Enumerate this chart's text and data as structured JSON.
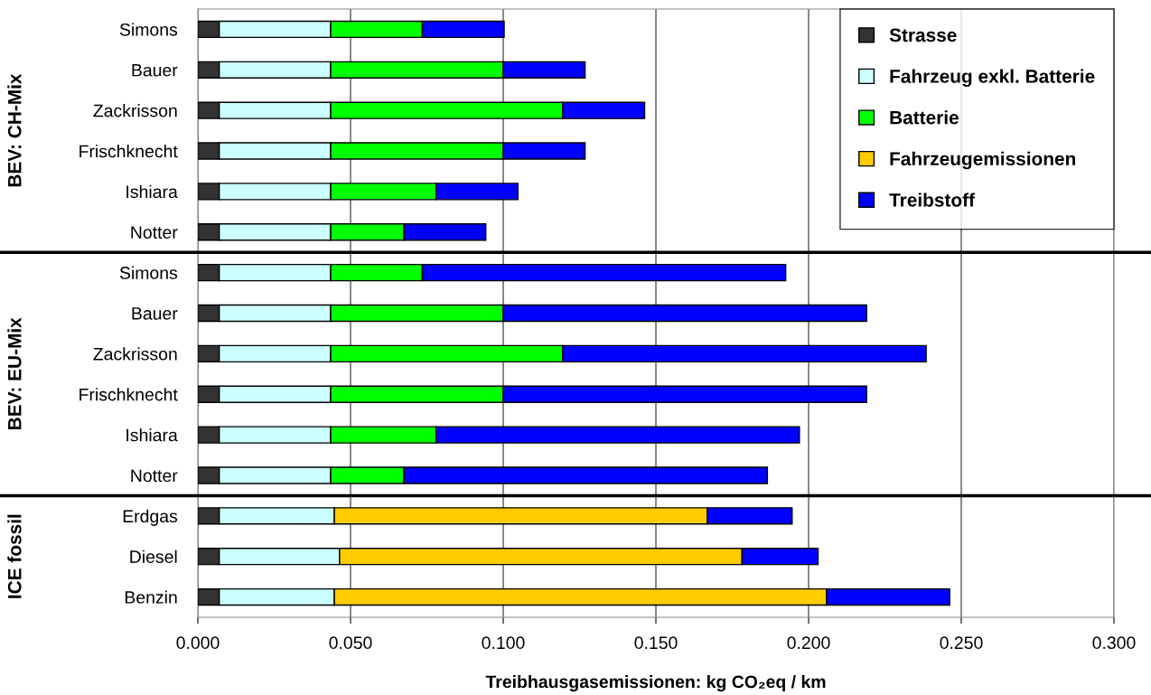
{
  "chart_data": {
    "type": "bar",
    "orientation": "horizontal",
    "stacked": true,
    "categories": [
      "Simons",
      "Bauer",
      "Zackrisson",
      "Frischknecht",
      "Ishiara",
      "Notter",
      "Simons",
      "Bauer",
      "Zackrisson",
      "Frischknecht",
      "Ishiara",
      "Notter",
      "Erdgas",
      "Diesel",
      "Benzin"
    ],
    "series": [
      {
        "name": "Strasse",
        "color": "#333333",
        "values": [
          0.007,
          0.007,
          0.007,
          0.007,
          0.007,
          0.007,
          0.007,
          0.007,
          0.007,
          0.007,
          0.007,
          0.007,
          0.007,
          0.007,
          0.007
        ]
      },
      {
        "name": "Fahrzeug exkl. Batterie",
        "color": "#ccffff",
        "values": [
          0.0365,
          0.0365,
          0.0365,
          0.0365,
          0.0365,
          0.0365,
          0.0365,
          0.0365,
          0.0365,
          0.0365,
          0.0365,
          0.0365,
          0.0377,
          0.0394,
          0.0377
        ]
      },
      {
        "name": "Batterie",
        "color": "#00ff00",
        "values": [
          0.03,
          0.0565,
          0.076,
          0.0565,
          0.0345,
          0.024,
          0.03,
          0.0565,
          0.076,
          0.0565,
          0.0345,
          0.024,
          null,
          null,
          null
        ]
      },
      {
        "name": "Fahrzeugemissionen",
        "color": "#ffcc00",
        "values": [
          null,
          null,
          null,
          null,
          null,
          null,
          null,
          null,
          null,
          null,
          null,
          null,
          0.1221,
          0.1318,
          0.1612
        ]
      },
      {
        "name": "Treibstoff",
        "color": "#0000ff",
        "values": [
          0.0268,
          0.0268,
          0.0268,
          0.0268,
          0.0268,
          0.0268,
          0.119,
          0.119,
          0.119,
          0.119,
          0.119,
          0.119,
          0.0278,
          0.0249,
          0.0403
        ]
      }
    ],
    "xlim": [
      0,
      0.3
    ],
    "xticks": [
      {
        "value": 0,
        "label": "0.000"
      },
      {
        "value": 0.05,
        "label": "0.050"
      },
      {
        "value": 0.1,
        "label": "0.100"
      },
      {
        "value": 0.15,
        "label": "0.150"
      },
      {
        "value": 0.2,
        "label": "0.200"
      },
      {
        "value": 0.25,
        "label": "0.250"
      },
      {
        "value": 0.3,
        "label": "0.300"
      }
    ],
    "xlabel": "Treibhausgasemissionen: kg CO₂eq / km",
    "annotations": [
      "BEV: CH-Mix",
      "BEV: EU-Mix",
      "ICE fossil"
    ],
    "grid": "x",
    "legend": "top right"
  }
}
